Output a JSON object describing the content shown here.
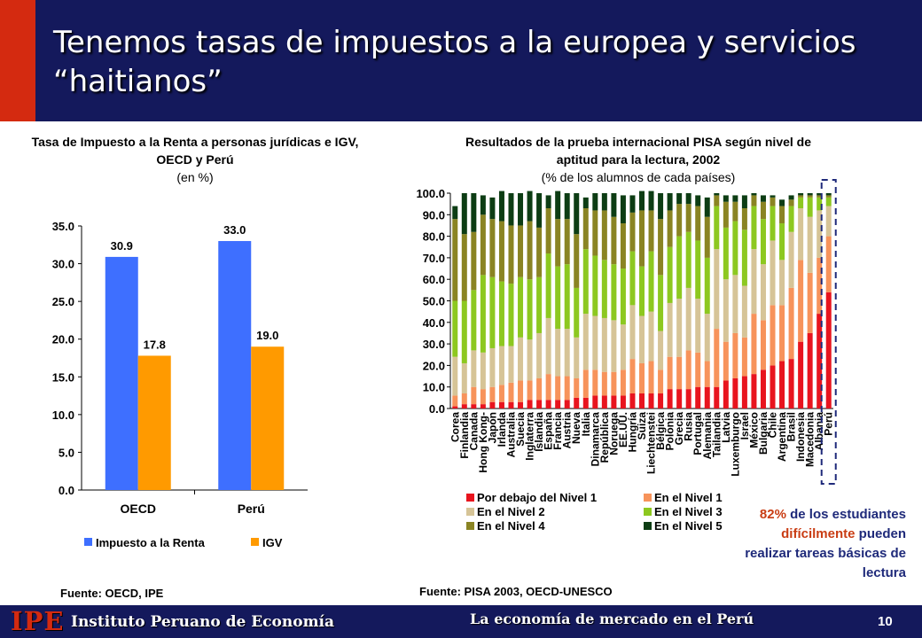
{
  "slide_title": "Tenemos tasas de impuestos a la europea y servicios “haitianos”",
  "chart_data": [
    {
      "type": "bar",
      "title": "Tasa de Impuesto a la Renta a personas jurídicas e IGV, OECD y Perú",
      "subtitle": "(en %)",
      "categories": [
        "OECD",
        "Perú"
      ],
      "series": [
        {
          "name": "Impuesto a la Renta",
          "values": [
            30.9,
            33.0
          ],
          "color": "#3e6fff"
        },
        {
          "name": "IGV",
          "values": [
            17.8,
            19.0
          ],
          "color": "#ff9a00"
        }
      ],
      "ylim": [
        0,
        35
      ],
      "yticks": [
        "0.0",
        "5.0",
        "10.0",
        "15.0",
        "20.0",
        "25.0",
        "30.0",
        "35.0"
      ],
      "data_labels": [
        "30.9",
        "33.0",
        "17.8",
        "19.0"
      ],
      "legend_position": "bottom",
      "grid": false,
      "source": "Fuente: OECD, IPE"
    },
    {
      "type": "bar",
      "stacked": true,
      "title": "Resultados de la prueba internacional PISA según nivel de aptitud para la lectura, 2002",
      "subtitle": "(% de los alumnos de cada países)",
      "categories": [
        "Corea",
        "Finlandia",
        "Canada",
        "Hong Kong-",
        "Japón",
        "Irlanda",
        "Australia",
        "Suecia",
        "Inglaterra",
        "Islandia",
        "España",
        "Francia",
        "Austria",
        "Nueva",
        "Italia",
        "Dinamarca",
        "República",
        "Noruega",
        "EE.UU.",
        "Hungría",
        "Suiza",
        "Liechtenstei",
        "Bélgica",
        "Polonia",
        "Grecia",
        "Rusia",
        "Portugal",
        "Alemania",
        "Tailandia",
        "Latvia",
        "Luxemburgo",
        "Israel",
        "México",
        "Bulgaria",
        "Chile",
        "Argentina",
        "Brasil",
        "Indonesia",
        "Macedonia",
        "Albania",
        "Perú"
      ],
      "series": [
        {
          "name": "Por debajo del Nivel 1",
          "color": "#e8141e",
          "values": [
            1,
            2,
            2,
            2,
            3,
            3,
            3,
            3,
            4,
            4,
            4,
            4,
            4,
            5,
            5,
            6,
            6,
            6,
            6,
            7,
            7,
            7,
            7,
            9,
            9,
            9,
            10,
            10,
            10,
            13,
            14,
            15,
            16,
            18,
            20,
            22,
            23,
            31,
            35,
            44,
            54
          ]
        },
        {
          "name": "En el Nivel 1",
          "color": "#f7935b",
          "values": [
            5,
            5,
            8,
            7,
            7,
            8,
            9,
            10,
            9,
            10,
            12,
            11,
            11,
            9,
            13,
            12,
            11,
            11,
            12,
            16,
            14,
            15,
            11,
            15,
            15,
            18,
            16,
            12,
            27,
            18,
            21,
            18,
            28,
            23,
            28,
            26,
            33,
            38,
            28,
            26,
            26
          ]
        },
        {
          "name": "En el Nivel 2",
          "color": "#d6c497",
          "values": [
            18,
            14,
            17,
            17,
            18,
            18,
            17,
            20,
            19,
            21,
            26,
            22,
            22,
            19,
            26,
            25,
            25,
            24,
            21,
            25,
            22,
            23,
            18,
            25,
            27,
            29,
            25,
            22,
            37,
            29,
            27,
            24,
            30,
            26,
            30,
            21,
            26,
            24,
            26,
            22,
            14
          ]
        },
        {
          "name": "En el Nivel 3",
          "color": "#8dc820",
          "values": [
            26,
            29,
            28,
            36,
            33,
            30,
            29,
            28,
            28,
            26,
            30,
            29,
            30,
            23,
            30,
            28,
            27,
            26,
            26,
            25,
            23,
            28,
            26,
            26,
            29,
            26,
            27,
            26,
            20,
            24,
            25,
            26,
            20,
            21,
            16,
            17,
            12,
            5,
            9,
            6,
            4
          ]
        },
        {
          "name": "En el Nivel 4",
          "color": "#8a8423",
          "values": [
            38,
            31,
            27,
            28,
            27,
            28,
            27,
            24,
            27,
            23,
            21,
            22,
            21,
            25,
            19,
            21,
            23,
            22,
            21,
            18,
            26,
            19,
            26,
            17,
            15,
            13,
            16,
            19,
            5,
            12,
            9,
            10,
            5,
            8,
            4,
            8,
            3,
            1,
            1,
            1,
            1
          ]
        },
        {
          "name": "En el Nivel 5",
          "color": "#0d3d14",
          "values": [
            6,
            19,
            18,
            9,
            10,
            14,
            15,
            15,
            14,
            16,
            6,
            13,
            12,
            19,
            5,
            8,
            8,
            11,
            13,
            8,
            9,
            9,
            12,
            8,
            5,
            5,
            5,
            9,
            1,
            3,
            3,
            6,
            1,
            3,
            1,
            3,
            2,
            1,
            1,
            1,
            1
          ]
        }
      ],
      "ylim": [
        0,
        100
      ],
      "yticks": [
        "0.0",
        "10.0",
        "20.0",
        "30.0",
        "40.0",
        "50.0",
        "60.0",
        "70.0",
        "80.0",
        "90.0",
        "100.0"
      ],
      "legend_position": "bottom",
      "grid": false,
      "highlight": "Perú",
      "source": "Fuente: PISA 2003, OECD-UNESCO"
    }
  ],
  "callout": {
    "pct": "82%",
    "text1": " de los estudiantes",
    "word": "difícilmente",
    "text2": " pueden realizar tareas básicas de lectura"
  },
  "footer": {
    "logo": "IPE",
    "org": "Instituto Peruano de Economía",
    "center": "La economía de mercado en el Perú",
    "page": "10"
  }
}
